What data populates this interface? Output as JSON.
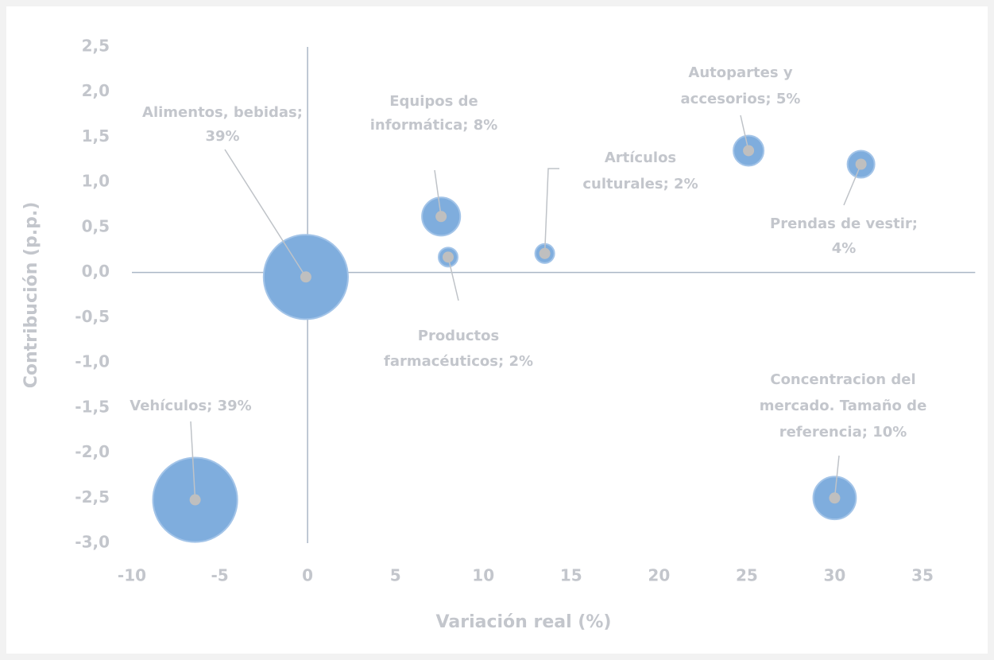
{
  "chart_data": {
    "type": "bubble",
    "xlabel": "Variación real (%)",
    "ylabel": "Contribución (p.p.)",
    "x": [
      -0.1,
      -6.4,
      7.6,
      8.0,
      13.5,
      25.1,
      31.5,
      30.0
    ],
    "y": [
      -0.05,
      -2.52,
      0.62,
      0.17,
      0.21,
      1.35,
      1.2,
      -2.5
    ],
    "sizes": [
      39,
      39,
      8,
      2,
      2,
      5,
      4,
      10
    ],
    "labels": [
      [
        "Alimentos, bebidas;",
        "39%"
      ],
      [
        "Vehículos; 39%"
      ],
      [
        "Equipos de",
        "informática; 8%"
      ],
      [
        "Productos",
        "farmacéuticos; 2%"
      ],
      [
        "Artículos",
        "culturales; 2%"
      ],
      [
        "Autopartes y",
        "accesorios; 5%"
      ],
      [
        "Prendas de vestir;",
        "4%"
      ],
      [
        "Concentracion del",
        "mercado. Tamaño de",
        "referencia; 10%"
      ]
    ],
    "color": "#7faddd",
    "xlim": [
      -10,
      38
    ],
    "ylim": [
      -3,
      2.5
    ],
    "xticks": [
      -10,
      -5,
      0,
      5,
      10,
      15,
      20,
      25,
      30,
      35
    ],
    "yticks": [
      {
        "value": 2.5,
        "label": "2,5"
      },
      {
        "value": 2.0,
        "label": "2,0"
      },
      {
        "value": 1.5,
        "label": "1,5"
      },
      {
        "value": 1.0,
        "label": "1,0"
      },
      {
        "value": 0.5,
        "label": "0,5"
      },
      {
        "value": 0.0,
        "label": "0,0"
      },
      {
        "value": -0.5,
        "label": "-0,5"
      },
      {
        "value": -1.0,
        "label": "-1,0"
      },
      {
        "value": -1.5,
        "label": "-1,5"
      },
      {
        "value": -2.0,
        "label": "-2,0"
      },
      {
        "value": -2.5,
        "label": "-2,5"
      },
      {
        "value": -3.0,
        "label": "-3,0"
      }
    ],
    "grid": false
  }
}
